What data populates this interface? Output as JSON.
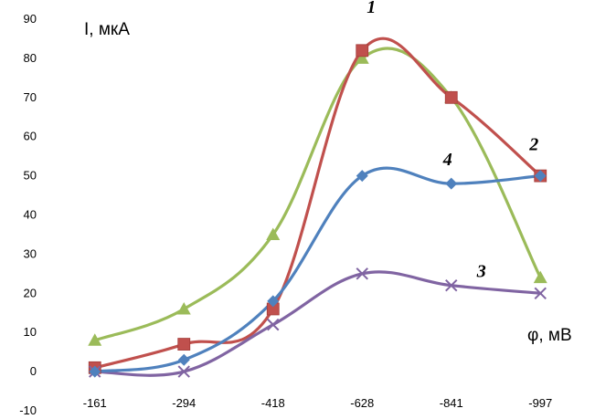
{
  "chart_data": {
    "type": "line",
    "ylabel": "I, мкА",
    "xlabel": "φ, мВ",
    "categories": [
      "-161",
      "-294",
      "-418",
      "-628",
      "-841",
      "-997"
    ],
    "ylim": [
      -10,
      90
    ],
    "yticks": [
      -10,
      0,
      10,
      20,
      30,
      40,
      50,
      60,
      70,
      80,
      90
    ],
    "grid": false,
    "smooth": true,
    "series": [
      {
        "name": "1",
        "color": "#9bbb59",
        "marker": "triangle",
        "values": [
          8,
          16,
          35,
          80,
          70,
          24
        ]
      },
      {
        "name": "2",
        "color": "#c0504d",
        "marker": "square",
        "values": [
          1,
          7,
          16,
          82,
          70,
          50
        ]
      },
      {
        "name": "3",
        "color": "#8064a2",
        "marker": "x",
        "values": [
          0,
          0,
          12,
          25,
          22,
          20
        ]
      },
      {
        "name": "4",
        "color": "#4f81bd",
        "marker": "diamond",
        "values": [
          0,
          3,
          18,
          50,
          48,
          50
        ]
      }
    ]
  }
}
